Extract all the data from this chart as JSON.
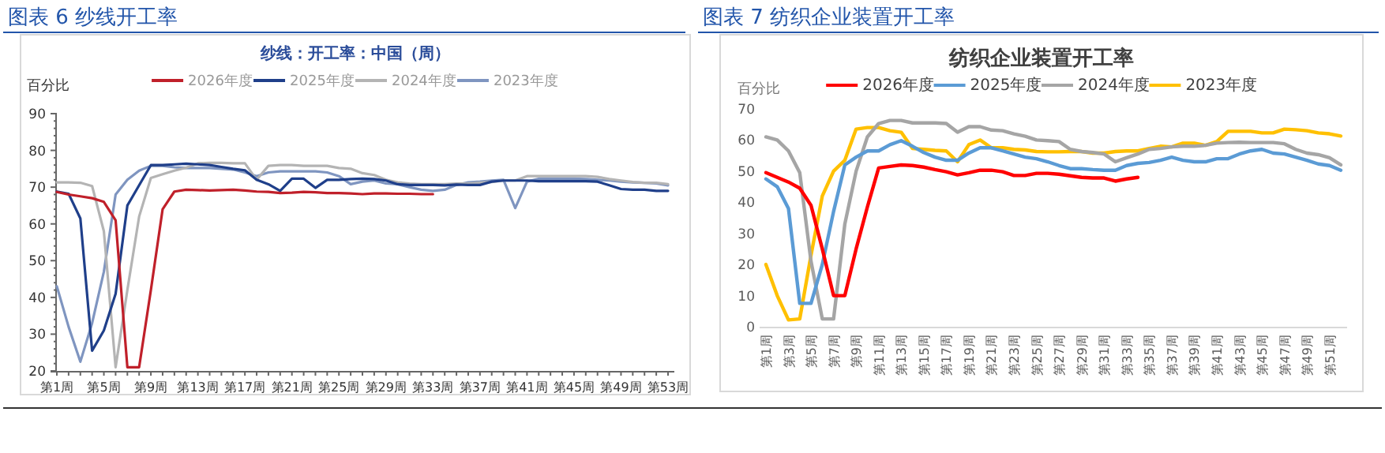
{
  "chart_data": [
    {
      "type": "line",
      "annotations": [
        "图表 6 纱线开工率"
      ],
      "title": "纱线：开工率：中国（周）",
      "ylabel": "百分比",
      "legend": "top",
      "categories": [
        "第1周",
        null,
        null,
        null,
        "第5周",
        null,
        null,
        null,
        "第9周",
        null,
        null,
        null,
        "第13周",
        null,
        null,
        null,
        "第17周",
        null,
        null,
        null,
        "第21周",
        null,
        null,
        null,
        "第25周",
        null,
        null,
        null,
        "第29周",
        null,
        null,
        null,
        "第33周",
        null,
        null,
        null,
        "第37周",
        null,
        null,
        null,
        "第41周",
        null,
        null,
        null,
        "第45周",
        null,
        null,
        null,
        "第49周",
        null,
        null,
        null,
        "第53周"
      ],
      "ylim": [
        20,
        90
      ],
      "yticks": [
        20,
        30,
        40,
        50,
        60,
        70,
        80,
        90
      ],
      "series": [
        {
          "name": "2026年度",
          "color": "#c0202a",
          "values": [
            68.7,
            68,
            67.5,
            67,
            66,
            61,
            21,
            21,
            42,
            64,
            68.8,
            69.3,
            69.2,
            69.1,
            69.2,
            69.3,
            69.1,
            68.8,
            68.7,
            68.4,
            68.5,
            68.7,
            68.6,
            68.4,
            68.4,
            68.3,
            68.1,
            68.3,
            68.3,
            68.2,
            68.2,
            68.1,
            68.1,
            null,
            null,
            null,
            null,
            null,
            null,
            null,
            null,
            null,
            null,
            null,
            null,
            null,
            null,
            null,
            null,
            null,
            null,
            null,
            null
          ]
        },
        {
          "name": "2025年度",
          "color": "#1f3f8a",
          "values": [
            68.8,
            68.2,
            61.5,
            25.5,
            31,
            41,
            65,
            70.5,
            76,
            76,
            76.2,
            76.4,
            76.2,
            76,
            75.5,
            75,
            74.6,
            72,
            70.8,
            69,
            72.3,
            72.3,
            69.8,
            72,
            72,
            72.2,
            72.3,
            72.2,
            71.8,
            70.8,
            70.6,
            70.6,
            70.6,
            70.5,
            70.7,
            70.6,
            70.6,
            71.5,
            71.8,
            71.8,
            71.8,
            71.6,
            71.6,
            71.6,
            71.6,
            71.6,
            71.5,
            70.5,
            69.5,
            69.3,
            69.3,
            69,
            69
          ]
        },
        {
          "name": "2024年度",
          "color": "#b4b4b4",
          "values": [
            71.3,
            71.3,
            71.2,
            70.3,
            58,
            21,
            42,
            62,
            72.5,
            73.5,
            74.5,
            75.3,
            76.5,
            76.6,
            76.6,
            76.5,
            76.5,
            72,
            75.8,
            76,
            76,
            75.8,
            75.8,
            75.8,
            75.2,
            75,
            73.8,
            73.3,
            72,
            71.3,
            71,
            70.8,
            70.8,
            70.8,
            71,
            71,
            71.2,
            71.4,
            71.8,
            71.8,
            73,
            73,
            73,
            73,
            73,
            73,
            72.8,
            72.2,
            71.8,
            71.4,
            71.2,
            71.2,
            70.8
          ]
        },
        {
          "name": "2023年度",
          "color": "#7f95c0",
          "values": [
            43,
            32,
            22.5,
            33,
            47,
            68,
            72,
            74.5,
            75.8,
            75.8,
            75.4,
            75.2,
            75.2,
            75.2,
            75,
            74.8,
            74,
            73,
            74,
            74.3,
            74.3,
            74.3,
            74.3,
            74,
            73,
            70.8,
            71.5,
            71.8,
            71,
            70.8,
            70,
            69.3,
            69,
            69.3,
            70.6,
            71.3,
            71.5,
            71.8,
            72,
            64.3,
            71.5,
            72.3,
            72.3,
            72.3,
            72.3,
            72.2,
            72,
            71.8,
            71.5,
            71.3,
            71.2,
            71,
            70.5
          ]
        }
      ]
    },
    {
      "type": "line",
      "annotations": [
        "图表 7 纺织企业装置开工率"
      ],
      "title": "纺织企业装置开工率",
      "ylabel": "百分比",
      "legend": "top",
      "categories": [
        "第1周",
        null,
        "第3周",
        null,
        "第5周",
        null,
        "第7周",
        null,
        "第9周",
        null,
        "第11周",
        null,
        "第13周",
        null,
        "第15周",
        null,
        "第17周",
        null,
        "第19周",
        null,
        "第21周",
        null,
        "第23周",
        null,
        "第25周",
        null,
        "第27周",
        null,
        "第29周",
        null,
        "第31周",
        null,
        "第33周",
        null,
        "第35周",
        null,
        "第37周",
        null,
        "第39周",
        null,
        "第41周",
        null,
        "第43周",
        null,
        "第45周",
        null,
        "第47周",
        null,
        "第49周",
        null,
        "第51周",
        null
      ],
      "ylim": [
        0,
        70
      ],
      "yticks": [
        0,
        10,
        20,
        30,
        40,
        50,
        60,
        70
      ],
      "series": [
        {
          "name": "2026年度",
          "color": "#ff0000",
          "values": [
            49.5,
            48,
            46.5,
            44.5,
            39,
            25,
            10,
            10,
            25,
            38.5,
            51,
            51.5,
            52,
            51.8,
            51.3,
            50.5,
            49.8,
            48.8,
            49.5,
            50.3,
            50.3,
            49.8,
            48.6,
            48.6,
            49.3,
            49.3,
            49,
            48.5,
            48,
            47.8,
            47.8,
            46.8,
            47.5,
            48,
            null,
            null,
            null,
            null,
            null,
            null,
            null,
            null,
            null,
            null,
            null,
            null,
            null,
            null,
            null,
            null,
            null,
            null
          ]
        },
        {
          "name": "2025年度",
          "color": "#5b9bd5",
          "values": [
            47.5,
            45,
            38,
            7.5,
            7.5,
            20,
            37,
            52,
            54.5,
            56.5,
            56.5,
            58.5,
            59.8,
            58,
            56,
            54.5,
            53.5,
            53.5,
            55.8,
            57.5,
            57.5,
            56.5,
            55.5,
            54.5,
            54,
            53,
            51.8,
            50.8,
            50.8,
            50.5,
            50.3,
            50.3,
            51.8,
            52.5,
            52.8,
            53.5,
            54.5,
            53.5,
            53,
            53,
            54,
            54,
            55.5,
            56.5,
            57,
            55.8,
            55.5,
            54.5,
            53.5,
            52.3,
            51.8,
            50.3
          ]
        },
        {
          "name": "2024年度",
          "color": "#a5a5a5",
          "values": [
            61,
            60,
            56.5,
            49.5,
            21,
            2.5,
            2.5,
            33,
            50,
            61,
            65.3,
            66.3,
            66.3,
            65.5,
            65.5,
            65.5,
            65.3,
            62.5,
            64.3,
            64.3,
            63.2,
            63,
            62,
            61.2,
            60,
            59.8,
            59.5,
            57,
            56.3,
            56,
            55.5,
            53,
            54.3,
            55.5,
            57,
            57.3,
            57.8,
            58,
            58,
            58.3,
            59,
            59.2,
            59.3,
            59.2,
            59.2,
            59.2,
            58.8,
            57,
            55.8,
            55.3,
            54.3,
            52
          ]
        },
        {
          "name": "2023年度",
          "color": "#ffc000",
          "values": [
            20,
            10,
            2.2,
            2.5,
            23,
            42,
            50,
            53.5,
            63.5,
            64,
            64,
            63,
            62.5,
            57.3,
            57,
            56.7,
            56.5,
            53,
            58.5,
            60,
            57.5,
            57.5,
            57,
            56.8,
            56.3,
            56.2,
            56.2,
            56.3,
            56.3,
            55.8,
            55.8,
            56.3,
            56.5,
            56.5,
            57.3,
            58,
            57.8,
            59,
            59,
            58.3,
            59.5,
            62.8,
            62.8,
            62.8,
            62.3,
            62.3,
            63.5,
            63.3,
            63,
            62.3,
            62,
            61.3
          ]
        }
      ]
    }
  ]
}
